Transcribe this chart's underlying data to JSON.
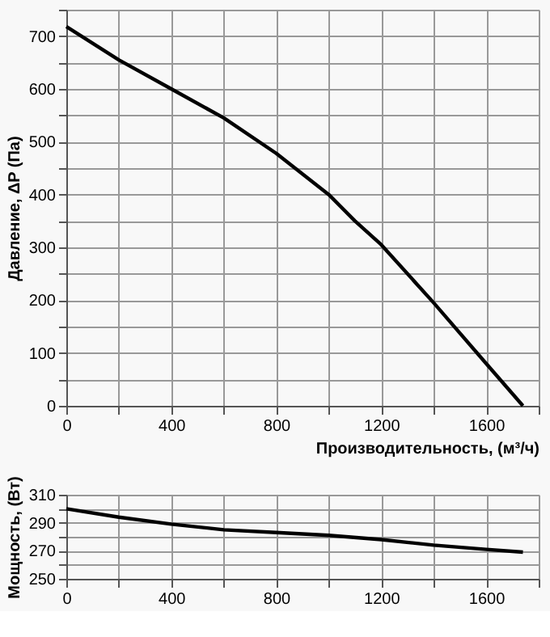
{
  "chart_data": [
    {
      "type": "line",
      "xlabel": "Производительность, (м³/ч)",
      "ylabel": "Давление, ΔP (Па)",
      "series": [
        {
          "color": "#000000",
          "x": [
            0,
            200,
            400,
            600,
            800,
            1000,
            1100,
            1200,
            1400,
            1600,
            1740
          ],
          "values": [
            718,
            655,
            600,
            545,
            478,
            400,
            350,
            305,
            195,
            80,
            0
          ]
        }
      ],
      "xlim": [
        0,
        1800
      ],
      "ylim": [
        0,
        750
      ],
      "xticks": [
        0,
        {
          "value": 200,
          "label": null
        },
        400,
        {
          "value": 600,
          "label": null
        },
        800,
        {
          "value": 1000,
          "label": null
        },
        1200,
        {
          "value": 1400,
          "label": null
        },
        1600,
        {
          "value": 1800,
          "label": null
        }
      ],
      "yticks": [
        0,
        {
          "value": 50,
          "label": null
        },
        100,
        {
          "value": 150,
          "label": null
        },
        200,
        {
          "value": 250,
          "label": null
        },
        300,
        {
          "value": 350,
          "label": null
        },
        400,
        {
          "value": 450,
          "label": null
        },
        500,
        {
          "value": 550,
          "label": null
        },
        600,
        {
          "value": 650,
          "label": null
        },
        700,
        {
          "value": 750,
          "label": null
        }
      ],
      "grid": true,
      "marker": "none",
      "line_style": "solid"
    },
    {
      "type": "line",
      "ylabel": "Мощность, (Вт)",
      "series": [
        {
          "color": "#000000",
          "x": [
            0,
            200,
            400,
            600,
            800,
            1000,
            1200,
            1400,
            1600,
            1740
          ],
          "values": [
            300,
            294,
            289,
            285,
            283,
            281,
            278,
            274,
            271,
            269
          ]
        }
      ],
      "xlim": [
        0,
        1800
      ],
      "ylim": [
        250,
        310
      ],
      "xticks": [
        0,
        {
          "value": 200,
          "label": null
        },
        400,
        {
          "value": 600,
          "label": null
        },
        800,
        {
          "value": 1000,
          "label": null
        },
        1200,
        {
          "value": 1400,
          "label": null
        },
        1600,
        {
          "value": 1800,
          "label": null
        }
      ],
      "yticks": [
        250,
        {
          "value": 260,
          "label": null
        },
        270,
        {
          "value": 280,
          "label": null
        },
        290,
        {
          "value": 300,
          "label": null
        },
        310
      ],
      "grid": true,
      "marker": "none",
      "line_style": "solid"
    }
  ]
}
